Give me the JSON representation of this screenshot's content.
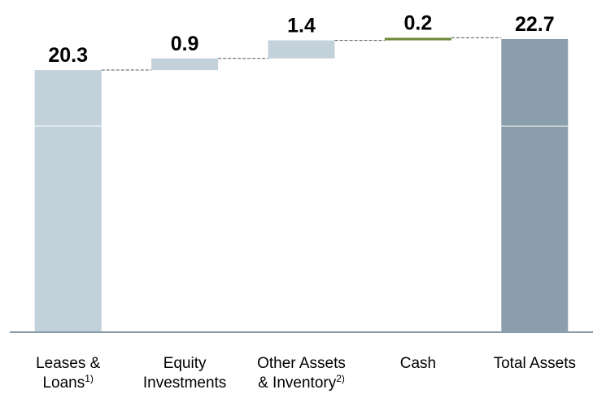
{
  "chart_data": {
    "type": "waterfall",
    "categories": [
      [
        "Leases &",
        "Loans"
      ],
      [
        "Equity",
        "Investments"
      ],
      [
        "Other Assets",
        "& Inventory"
      ],
      [
        "Cash"
      ],
      [
        "Total Assets"
      ]
    ],
    "category_notes": {
      "0": "1)",
      "2": "2)"
    },
    "values": [
      20.3,
      0.9,
      1.4,
      0.2,
      22.7
    ],
    "totals": [
      false,
      false,
      false,
      false,
      true
    ],
    "colors": [
      "#c3d1db",
      "#c3d1db",
      "#c3d1db",
      "#6e8a3c",
      "#8a9eab"
    ],
    "ylim": [
      0,
      22.7
    ]
  }
}
